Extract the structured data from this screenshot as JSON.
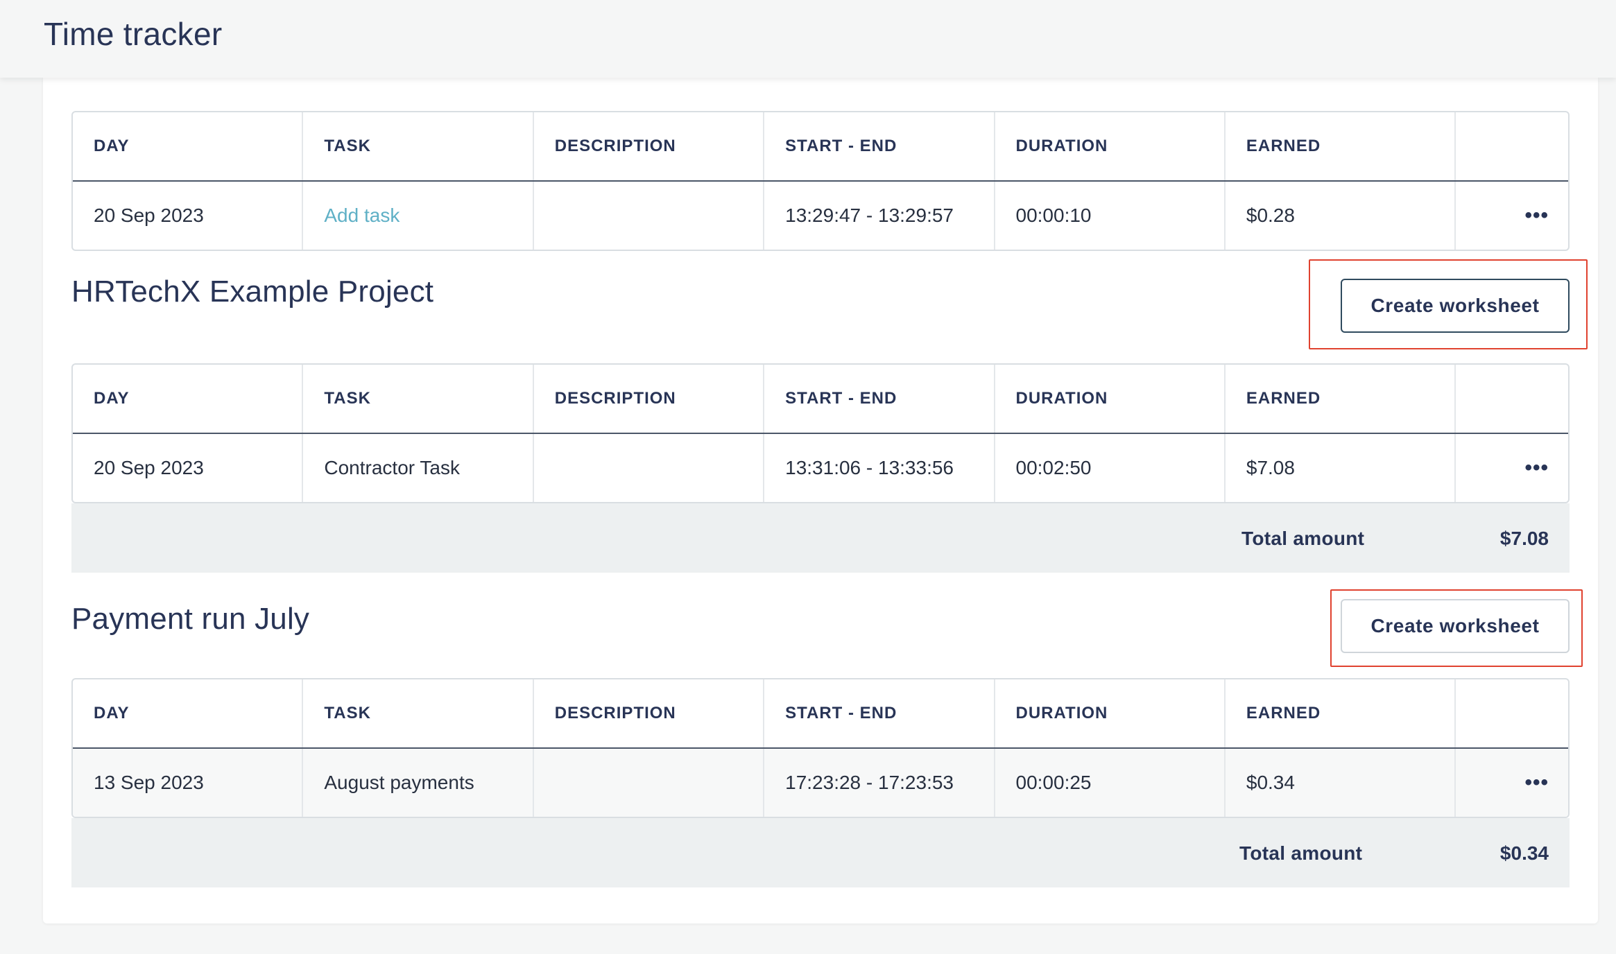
{
  "header": {
    "title": "Time tracker"
  },
  "columns": [
    "DAY",
    "TASK",
    "DESCRIPTION",
    "START - END",
    "DURATION",
    "EARNED"
  ],
  "sections": [
    {
      "title": "",
      "rows": [
        {
          "day": "20 Sep 2023",
          "task": "Add task",
          "task_is_link": true,
          "description": "",
          "start_end": "13:29:47 - 13:29:57",
          "duration": "00:00:10",
          "earned": "$0.28"
        }
      ]
    },
    {
      "title": "HRTechX Example Project",
      "create_label": "Create worksheet",
      "rows": [
        {
          "day": "20 Sep 2023",
          "task": "Contractor Task",
          "description": "",
          "start_end": "13:31:06 - 13:33:56",
          "duration": "00:02:50",
          "earned": "$7.08"
        }
      ],
      "total_label": "Total amount",
      "total_value": "$7.08"
    },
    {
      "title": "Payment run July",
      "create_label": "Create worksheet",
      "rows": [
        {
          "day": "13 Sep 2023",
          "task": "August payments",
          "description": "",
          "start_end": "17:23:28 - 17:23:53",
          "duration": "00:00:25",
          "earned": "$0.34"
        }
      ],
      "total_label": "Total amount",
      "total_value": "$0.34"
    }
  ],
  "icons": {
    "row_menu": "more-horizontal-icon"
  },
  "colors": {
    "accent_link": "#5fb0c6",
    "highlight": "#e0422f",
    "title": "#283456"
  }
}
